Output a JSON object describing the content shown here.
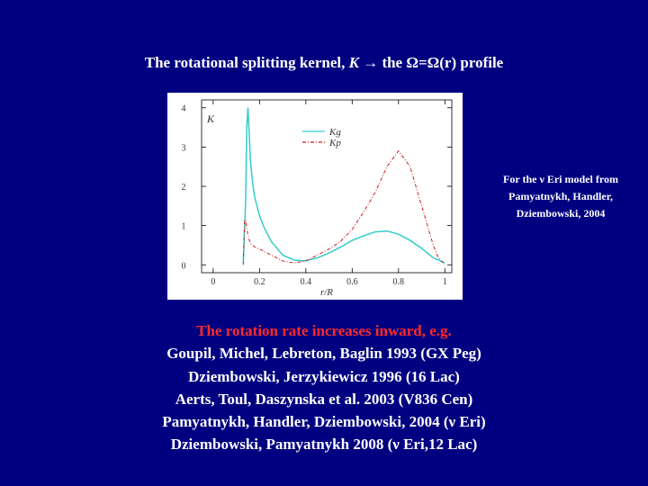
{
  "slide": {
    "title_part1": "The rotational splitting kernel, ",
    "title_k": "K",
    "title_arrow": "→",
    "title_part2": " the Ω=Ω(r) profile",
    "note_lines": [
      "For the ν Eri model from",
      "Pamyatnykh, Handler,",
      "Dziembowski, 2004"
    ],
    "headline": "The rotation rate increases inward, e.g.",
    "references": [
      "Goupil, Michel, Lebreton, Baglin 1993 (GX Peg)",
      "Dziembowski, Jerzykiewicz 1996 (16 Lac)",
      "Aerts, Toul, Daszynska et al. 2003 (V836 Cen)",
      "Pamyatnykh, Handler, Dziembowski, 2004 (ν Eri)",
      "Dziembowski, Pamyatnykh 2008 (ν Eri,12 Lac)"
    ]
  },
  "chart_data": {
    "type": "line",
    "xlabel": "r/R",
    "ylabel": "K",
    "xlim": [
      -0.05,
      1.03
    ],
    "ylim": [
      -0.2,
      4.2
    ],
    "xticks": [
      "0",
      "0.2",
      "0.4",
      "0.6",
      "0.8",
      "1"
    ],
    "yticks": [
      "0",
      "1",
      "2",
      "3",
      "4"
    ],
    "legend_position": "top-center",
    "series": [
      {
        "name": "Kg",
        "color": "#33cccc",
        "style": "solid",
        "x": [
          0.13,
          0.14,
          0.145,
          0.15,
          0.155,
          0.16,
          0.17,
          0.18,
          0.2,
          0.22,
          0.25,
          0.3,
          0.35,
          0.4,
          0.45,
          0.5,
          0.55,
          0.6,
          0.65,
          0.7,
          0.75,
          0.8,
          0.85,
          0.9,
          0.95,
          1.0
        ],
        "y": [
          0.05,
          1.6,
          3.5,
          4.0,
          3.4,
          2.7,
          2.1,
          1.7,
          1.25,
          0.95,
          0.6,
          0.25,
          0.12,
          0.1,
          0.18,
          0.3,
          0.45,
          0.62,
          0.74,
          0.84,
          0.86,
          0.78,
          0.62,
          0.42,
          0.18,
          0.05
        ]
      },
      {
        "name": "Kp",
        "color": "#cc2222",
        "style": "dashed",
        "x": [
          0.13,
          0.135,
          0.14,
          0.15,
          0.16,
          0.18,
          0.2,
          0.25,
          0.3,
          0.35,
          0.4,
          0.45,
          0.5,
          0.55,
          0.6,
          0.65,
          0.7,
          0.75,
          0.8,
          0.85,
          0.88,
          0.9,
          0.93,
          0.95,
          0.97,
          1.0
        ],
        "y": [
          0.0,
          1.1,
          1.15,
          0.75,
          0.55,
          0.45,
          0.4,
          0.25,
          0.1,
          0.05,
          0.1,
          0.25,
          0.4,
          0.6,
          0.9,
          1.35,
          1.85,
          2.5,
          2.9,
          2.5,
          1.9,
          1.5,
          0.9,
          0.5,
          0.2,
          0.0
        ]
      }
    ]
  }
}
